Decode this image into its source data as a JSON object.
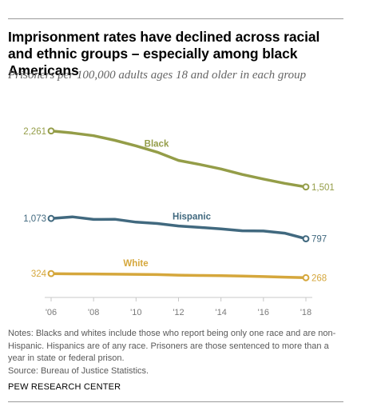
{
  "title": "Imprisonment rates have declined across racial and ethnic groups – especially among black Americans",
  "subtitle": "Prisoners per 100,000 adults ages 18 and older in each group",
  "notes": [
    "Notes: Blacks and whites include those who report being only one race and are non-Hispanic. Hispanics are of any race. Prisoners are those sentenced to more than a year in state or federal prison.",
    "Source: Bureau of Justice Statistics."
  ],
  "brand": "PEW RESEARCH CENTER",
  "chart_data": {
    "type": "line",
    "x": [
      2006,
      2007,
      2008,
      2009,
      2010,
      2011,
      2012,
      2013,
      2014,
      2015,
      2016,
      2017,
      2018
    ],
    "xlim": [
      2006,
      2018
    ],
    "ylim": [
      0,
      2300
    ],
    "x_tick_labels": [
      "'06",
      "'08",
      "'10",
      "'12",
      "'14",
      "'16",
      "'18"
    ],
    "x_tick_values": [
      2006,
      2008,
      2010,
      2012,
      2014,
      2016,
      2018
    ],
    "grid": false,
    "series": [
      {
        "name": "Black",
        "color": "#949d48",
        "values": [
          2261,
          2233,
          2196,
          2134,
          2059,
          1973,
          1861,
          1806,
          1745,
          1670,
          1608,
          1549,
          1501
        ],
        "start_label": "2,261",
        "end_label": "1,501"
      },
      {
        "name": "Hispanic",
        "color": "#41697f",
        "values": [
          1073,
          1094,
          1060,
          1062,
          1023,
          1004,
          971,
          951,
          930,
          906,
          902,
          873,
          797
        ],
        "start_label": "1,073",
        "end_label": "797"
      },
      {
        "name": "White",
        "color": "#d5a73c",
        "values": [
          324,
          320,
          319,
          316,
          314,
          311,
          303,
          299,
          295,
          290,
          283,
          276,
          268
        ],
        "start_label": "324",
        "end_label": "268"
      }
    ]
  }
}
